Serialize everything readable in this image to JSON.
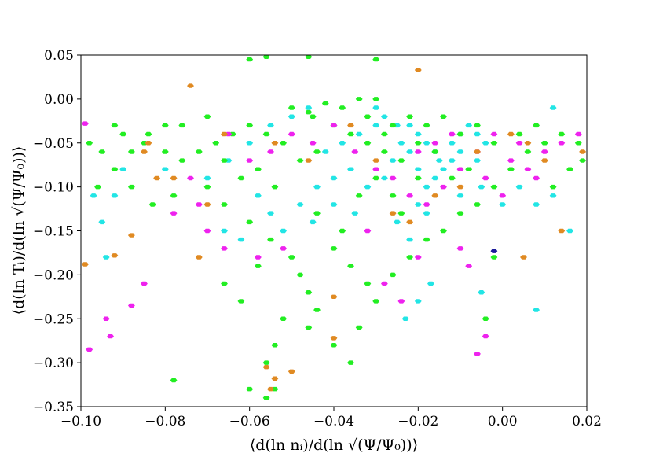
{
  "chart_data": {
    "type": "scatter",
    "title": "",
    "xlabel": "⟨d(ln nᵢ)/d(ln √(Ψ/Ψ₀))⟩",
    "ylabel": "⟨d(ln Tᵢ)/d(ln √(Ψ/Ψ₀))⟩",
    "xlim": [
      -0.1,
      0.02
    ],
    "ylim": [
      -0.35,
      0.05
    ],
    "xticks": [
      "−0.10",
      "−0.08",
      "−0.06",
      "−0.04",
      "−0.02",
      "0.00",
      "0.02"
    ],
    "yticks": [
      "−0.35",
      "−0.30",
      "−0.25",
      "−0.20",
      "−0.15",
      "−0.10",
      "−0.05",
      "0.00",
      "0.05"
    ],
    "grid": false,
    "marker": "hexbin",
    "colors": {
      "cyan": "#22e5e5",
      "green": "#22ee22",
      "magenta": "#ee22ee",
      "orange": "#e08a22",
      "navy": "#1a1a9a"
    },
    "series": [
      {
        "color": "cyan",
        "points": [
          [
            -0.03,
            -0.01
          ],
          [
            -0.028,
            -0.02
          ],
          [
            -0.025,
            -0.03
          ],
          [
            -0.022,
            -0.03
          ],
          [
            -0.02,
            -0.04
          ],
          [
            -0.018,
            -0.05
          ],
          [
            -0.016,
            -0.06
          ],
          [
            -0.015,
            -0.07
          ],
          [
            -0.014,
            -0.08
          ],
          [
            -0.016,
            -0.09
          ],
          [
            -0.018,
            -0.1
          ],
          [
            -0.02,
            -0.08
          ],
          [
            -0.022,
            -0.06
          ],
          [
            -0.012,
            -0.05
          ],
          [
            -0.01,
            -0.04
          ],
          [
            -0.008,
            -0.03
          ],
          [
            -0.006,
            -0.04
          ],
          [
            -0.004,
            -0.05
          ],
          [
            -0.03,
            -0.03
          ],
          [
            -0.034,
            -0.04
          ],
          [
            -0.038,
            -0.05
          ],
          [
            -0.042,
            -0.06
          ],
          [
            -0.046,
            -0.01
          ],
          [
            -0.05,
            -0.02
          ],
          [
            -0.055,
            -0.03
          ],
          [
            -0.06,
            -0.05
          ],
          [
            -0.065,
            -0.07
          ],
          [
            -0.07,
            -0.09
          ],
          [
            -0.08,
            -0.08
          ],
          [
            -0.09,
            -0.08
          ],
          [
            -0.095,
            -0.14
          ],
          [
            -0.097,
            -0.11
          ],
          [
            -0.092,
            -0.11
          ],
          [
            -0.058,
            -0.11
          ],
          [
            -0.055,
            -0.13
          ],
          [
            -0.045,
            -0.14
          ],
          [
            -0.04,
            -0.12
          ],
          [
            -0.035,
            -0.13
          ],
          [
            -0.025,
            -0.14
          ],
          [
            -0.022,
            -0.16
          ],
          [
            -0.02,
            -0.12
          ],
          [
            -0.01,
            -0.11
          ],
          [
            -0.005,
            -0.1
          ],
          [
            0.0,
            -0.12
          ],
          [
            0.004,
            -0.1
          ],
          [
            0.008,
            -0.12
          ],
          [
            0.012,
            -0.11
          ],
          [
            0.016,
            -0.15
          ],
          [
            0.01,
            -0.05
          ],
          [
            0.012,
            -0.01
          ],
          [
            -0.01,
            -0.06
          ],
          [
            -0.012,
            -0.07
          ],
          [
            -0.024,
            -0.05
          ],
          [
            -0.026,
            -0.07
          ],
          [
            -0.028,
            -0.09
          ],
          [
            -0.032,
            -0.1
          ],
          [
            -0.036,
            -0.08
          ],
          [
            -0.04,
            -0.09
          ],
          [
            -0.044,
            -0.1
          ],
          [
            -0.048,
            -0.12
          ],
          [
            -0.052,
            -0.15
          ],
          [
            -0.062,
            -0.16
          ],
          [
            -0.017,
            -0.21
          ],
          [
            -0.02,
            -0.23
          ],
          [
            -0.023,
            -0.25
          ],
          [
            -0.005,
            -0.22
          ],
          [
            0.008,
            -0.24
          ],
          [
            -0.066,
            -0.15
          ],
          [
            -0.094,
            -0.18
          ],
          [
            -0.018,
            -0.13
          ],
          [
            -0.006,
            -0.07
          ]
        ]
      },
      {
        "color": "green",
        "points": [
          [
            -0.06,
            0.045
          ],
          [
            -0.056,
            0.048
          ],
          [
            -0.046,
            0.048
          ],
          [
            -0.03,
            0.045
          ],
          [
            -0.05,
            -0.01
          ],
          [
            -0.045,
            -0.02
          ],
          [
            -0.04,
            -0.03
          ],
          [
            -0.036,
            -0.04
          ],
          [
            -0.032,
            -0.05
          ],
          [
            -0.028,
            -0.06
          ],
          [
            -0.024,
            -0.07
          ],
          [
            -0.02,
            -0.05
          ],
          [
            -0.044,
            -0.06
          ],
          [
            -0.048,
            -0.07
          ],
          [
            -0.052,
            -0.05
          ],
          [
            -0.056,
            -0.04
          ],
          [
            -0.06,
            -0.03
          ],
          [
            -0.064,
            -0.04
          ],
          [
            -0.068,
            -0.05
          ],
          [
            -0.072,
            -0.06
          ],
          [
            -0.076,
            -0.07
          ],
          [
            -0.08,
            -0.06
          ],
          [
            -0.085,
            -0.05
          ],
          [
            -0.09,
            -0.04
          ],
          [
            -0.095,
            -0.06
          ],
          [
            -0.098,
            -0.05
          ],
          [
            -0.092,
            -0.08
          ],
          [
            -0.088,
            -0.1
          ],
          [
            -0.083,
            -0.12
          ],
          [
            -0.078,
            -0.11
          ],
          [
            -0.07,
            -0.1
          ],
          [
            -0.066,
            -0.12
          ],
          [
            -0.06,
            -0.14
          ],
          [
            -0.055,
            -0.16
          ],
          [
            -0.05,
            -0.18
          ],
          [
            -0.048,
            -0.2
          ],
          [
            -0.046,
            -0.22
          ],
          [
            -0.044,
            -0.24
          ],
          [
            -0.052,
            -0.25
          ],
          [
            -0.054,
            -0.28
          ],
          [
            -0.056,
            -0.3
          ],
          [
            -0.054,
            -0.33
          ],
          [
            -0.056,
            -0.34
          ],
          [
            -0.06,
            -0.33
          ],
          [
            -0.078,
            -0.32
          ],
          [
            -0.04,
            -0.17
          ],
          [
            -0.036,
            -0.19
          ],
          [
            -0.032,
            -0.21
          ],
          [
            -0.03,
            -0.23
          ],
          [
            -0.026,
            -0.2
          ],
          [
            -0.022,
            -0.18
          ],
          [
            -0.018,
            -0.16
          ],
          [
            -0.014,
            -0.15
          ],
          [
            -0.01,
            -0.13
          ],
          [
            -0.006,
            -0.12
          ],
          [
            -0.002,
            -0.1
          ],
          [
            0.002,
            -0.08
          ],
          [
            0.006,
            -0.06
          ],
          [
            0.01,
            -0.05
          ],
          [
            0.014,
            -0.04
          ],
          [
            0.018,
            -0.05
          ],
          [
            0.019,
            -0.07
          ],
          [
            -0.002,
            -0.05
          ],
          [
            -0.006,
            -0.03
          ],
          [
            -0.01,
            -0.04
          ],
          [
            -0.014,
            -0.02
          ],
          [
            -0.018,
            -0.03
          ],
          [
            -0.022,
            -0.02
          ],
          [
            -0.026,
            -0.03
          ],
          [
            -0.03,
            0.0
          ],
          [
            -0.034,
            0.0
          ],
          [
            -0.038,
            -0.01
          ],
          [
            -0.042,
            -0.005
          ],
          [
            -0.046,
            -0.015
          ],
          [
            -0.066,
            -0.21
          ],
          [
            -0.062,
            -0.23
          ],
          [
            -0.058,
            -0.19
          ],
          [
            -0.046,
            -0.26
          ],
          [
            -0.04,
            -0.28
          ],
          [
            -0.034,
            -0.26
          ],
          [
            -0.036,
            -0.3
          ],
          [
            -0.004,
            -0.25
          ],
          [
            -0.002,
            -0.18
          ],
          [
            -0.088,
            -0.06
          ],
          [
            -0.096,
            -0.1
          ],
          [
            -0.066,
            -0.07
          ],
          [
            -0.07,
            -0.02
          ],
          [
            -0.076,
            -0.03
          ],
          [
            -0.08,
            -0.03
          ],
          [
            -0.084,
            -0.04
          ],
          [
            -0.092,
            -0.03
          ],
          [
            -0.062,
            -0.09
          ],
          [
            -0.058,
            -0.08
          ],
          [
            -0.054,
            -0.1
          ],
          [
            -0.044,
            -0.13
          ],
          [
            -0.038,
            -0.15
          ],
          [
            -0.034,
            -0.11
          ],
          [
            -0.03,
            -0.09
          ],
          [
            -0.026,
            -0.11
          ],
          [
            -0.024,
            -0.13
          ],
          [
            -0.012,
            -0.09
          ],
          [
            -0.008,
            -0.08
          ],
          [
            0.004,
            -0.04
          ],
          [
            0.008,
            -0.03
          ],
          [
            0.016,
            -0.08
          ],
          [
            0.012,
            -0.1
          ],
          [
            -0.016,
            -0.06
          ],
          [
            -0.02,
            -0.09
          ],
          [
            -0.028,
            -0.04
          ],
          [
            -0.032,
            -0.02
          ]
        ]
      },
      {
        "color": "magenta",
        "points": [
          [
            -0.099,
            -0.028
          ],
          [
            -0.094,
            -0.25
          ],
          [
            -0.098,
            -0.285
          ],
          [
            -0.093,
            -0.27
          ],
          [
            -0.088,
            -0.235
          ],
          [
            -0.085,
            -0.21
          ],
          [
            -0.078,
            -0.13
          ],
          [
            -0.072,
            -0.12
          ],
          [
            -0.074,
            -0.09
          ],
          [
            -0.065,
            -0.04
          ],
          [
            -0.06,
            -0.07
          ],
          [
            -0.055,
            -0.06
          ],
          [
            -0.05,
            -0.04
          ],
          [
            -0.045,
            -0.05
          ],
          [
            -0.04,
            -0.03
          ],
          [
            -0.035,
            -0.06
          ],
          [
            -0.03,
            -0.08
          ],
          [
            -0.026,
            -0.09
          ],
          [
            -0.022,
            -0.11
          ],
          [
            -0.018,
            -0.12
          ],
          [
            -0.014,
            -0.1
          ],
          [
            -0.01,
            -0.08
          ],
          [
            -0.006,
            -0.06
          ],
          [
            -0.002,
            -0.04
          ],
          [
            0.002,
            -0.07
          ],
          [
            0.006,
            -0.08
          ],
          [
            0.01,
            -0.06
          ],
          [
            0.014,
            -0.05
          ],
          [
            0.018,
            -0.04
          ],
          [
            -0.004,
            -0.09
          ],
          [
            0.0,
            -0.11
          ],
          [
            -0.02,
            -0.06
          ],
          [
            -0.016,
            -0.05
          ],
          [
            -0.012,
            -0.04
          ],
          [
            -0.032,
            -0.15
          ],
          [
            -0.028,
            -0.21
          ],
          [
            -0.024,
            -0.23
          ],
          [
            -0.02,
            -0.18
          ],
          [
            -0.01,
            -0.17
          ],
          [
            -0.008,
            -0.19
          ],
          [
            -0.004,
            -0.27
          ],
          [
            -0.006,
            -0.29
          ],
          [
            -0.058,
            -0.18
          ],
          [
            -0.052,
            -0.17
          ],
          [
            -0.066,
            -0.17
          ],
          [
            -0.07,
            -0.15
          ],
          [
            0.004,
            -0.05
          ],
          [
            0.008,
            -0.09
          ]
        ]
      },
      {
        "color": "orange",
        "points": [
          [
            -0.074,
            0.015
          ],
          [
            -0.02,
            0.033
          ],
          [
            -0.084,
            -0.05
          ],
          [
            -0.085,
            -0.06
          ],
          [
            -0.078,
            -0.09
          ],
          [
            -0.066,
            -0.04
          ],
          [
            -0.07,
            -0.12
          ],
          [
            -0.088,
            -0.155
          ],
          [
            -0.092,
            -0.178
          ],
          [
            -0.099,
            -0.188
          ],
          [
            -0.072,
            -0.18
          ],
          [
            -0.054,
            -0.05
          ],
          [
            -0.036,
            -0.03
          ],
          [
            -0.03,
            -0.07
          ],
          [
            -0.026,
            -0.13
          ],
          [
            -0.022,
            -0.14
          ],
          [
            -0.016,
            -0.11
          ],
          [
            -0.01,
            -0.1
          ],
          [
            -0.006,
            -0.06
          ],
          [
            0.002,
            -0.04
          ],
          [
            0.006,
            -0.05
          ],
          [
            0.01,
            -0.07
          ],
          [
            0.014,
            -0.15
          ],
          [
            0.019,
            -0.06
          ],
          [
            -0.04,
            -0.225
          ],
          [
            -0.04,
            -0.272
          ],
          [
            -0.056,
            -0.305
          ],
          [
            -0.054,
            -0.318
          ],
          [
            -0.055,
            -0.33
          ],
          [
            -0.05,
            -0.31
          ],
          [
            -0.082,
            -0.09
          ],
          [
            -0.046,
            -0.07
          ],
          [
            0.005,
            -0.18
          ]
        ]
      },
      {
        "color": "navy",
        "points": [
          [
            -0.002,
            -0.173
          ]
        ]
      }
    ]
  }
}
